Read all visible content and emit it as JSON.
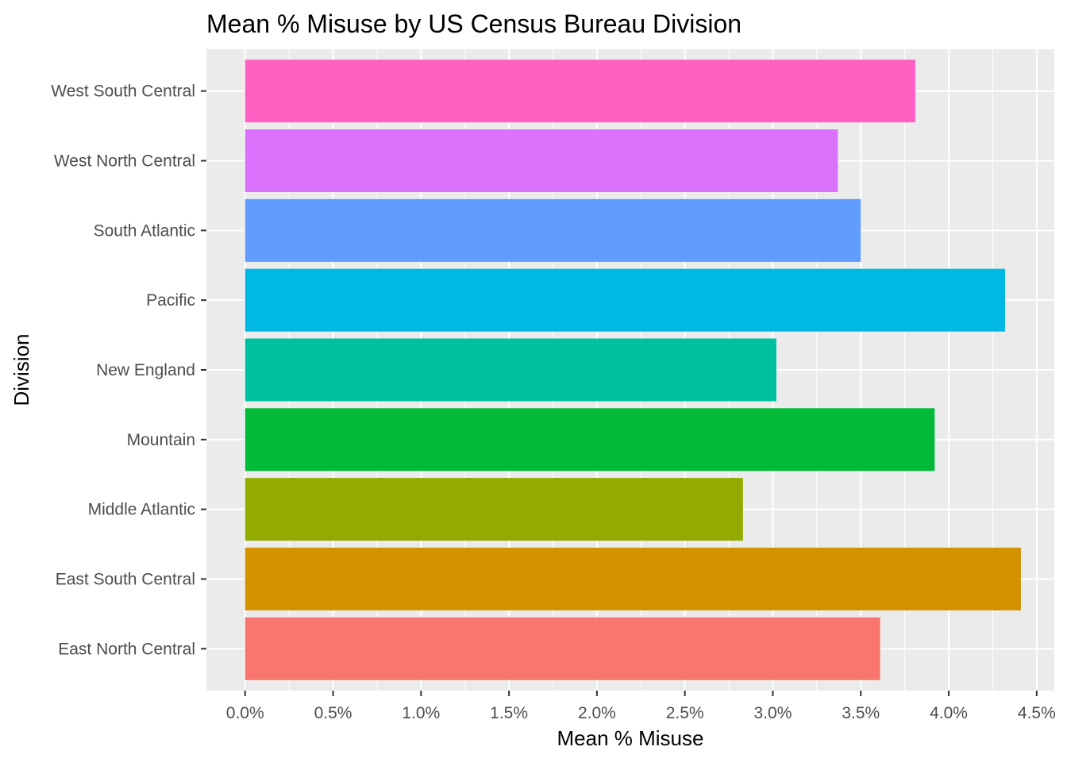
{
  "chart_data": {
    "type": "bar",
    "orientation": "horizontal",
    "title": "Mean % Misuse by US Census Bureau Division",
    "xlabel": "Mean % Misuse",
    "ylabel": "Division",
    "categories": [
      "East North Central",
      "East South Central",
      "Middle Atlantic",
      "Mountain",
      "New England",
      "Pacific",
      "South Atlantic",
      "West North Central",
      "West South Central"
    ],
    "values": [
      3.61,
      4.41,
      2.83,
      3.92,
      3.02,
      4.32,
      3.5,
      3.37,
      3.81
    ],
    "colors": [
      "#F8766D",
      "#D39200",
      "#93AA00",
      "#00BA38",
      "#00C19F",
      "#00B9E3",
      "#619CFF",
      "#DB72FB",
      "#FF61C3"
    ],
    "xlim": [
      -0.22,
      4.6
    ],
    "xticks": [
      0,
      0.5,
      1.0,
      1.5,
      2.0,
      2.5,
      3.0,
      3.5,
      4.0,
      4.5
    ],
    "xtick_labels": [
      "0.0%",
      "0.5%",
      "1.0%",
      "1.5%",
      "2.0%",
      "2.5%",
      "3.0%",
      "3.5%",
      "4.0%",
      "4.5%"
    ],
    "grid": true,
    "legend": "none",
    "panel_background": "#EBEBEB",
    "grid_color": "#FFFFFF"
  }
}
